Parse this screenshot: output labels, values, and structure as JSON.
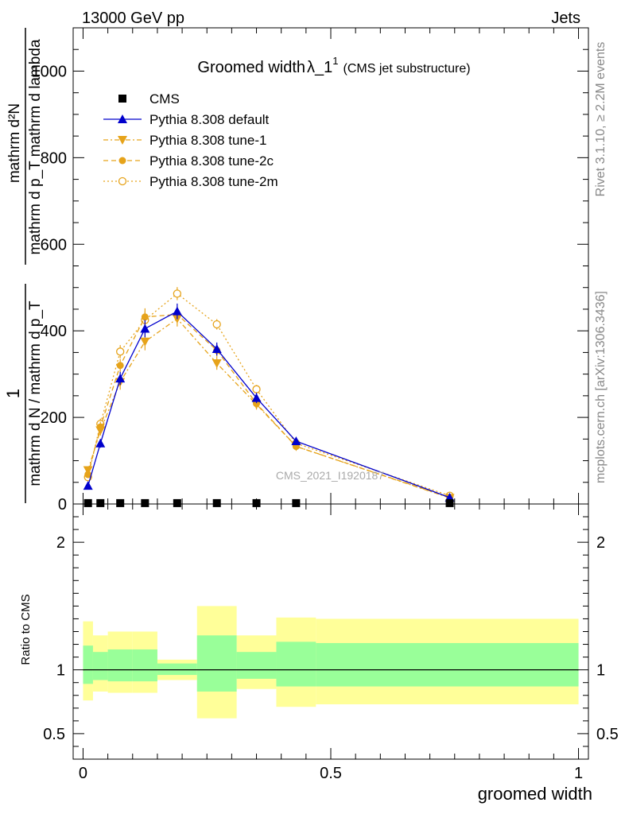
{
  "header": {
    "left": "13000 GeV pp",
    "right": "Jets"
  },
  "title": {
    "main": "Groomed width",
    "symbol": "λ_1",
    "superscript": "1",
    "sub": "(CMS jet substructure)"
  },
  "side_labels": {
    "rivet": "Rivet 3.1.10, ≥ 2.2M events",
    "mcplots": "mcplots.cern.ch [arXiv:1306.3436]"
  },
  "watermark": "CMS_2021_I1920187",
  "ylabel": {
    "numerator_1": "1",
    "denominator_1": "mathrm d N / mathrm d p_T",
    "numerator_2": "mathrm d²N",
    "denominator_2": "mathrm d p_T mathrm d lambda"
  },
  "ratio_ylabel": "Ratio to CMS",
  "colors": {
    "cms": "#000000",
    "default": "#0000cc",
    "tune": "#e6a31a",
    "band_inner": "#99ff99",
    "band_outer": "#ffff99"
  },
  "chart_data": [
    {
      "type": "line",
      "panel": "main",
      "xlabel": "groomed width",
      "xlim": [
        -0.02,
        1.02
      ],
      "ylim": [
        0,
        1100
      ],
      "x_ticks": [
        "0",
        "0.5",
        "1"
      ],
      "y_ticks": [
        "0",
        "200",
        "400",
        "600",
        "800",
        "1000"
      ],
      "bins": [
        [
          0.0,
          0.02
        ],
        [
          0.02,
          0.05
        ],
        [
          0.05,
          0.1
        ],
        [
          0.1,
          0.15
        ],
        [
          0.15,
          0.23
        ],
        [
          0.23,
          0.31
        ],
        [
          0.31,
          0.39
        ],
        [
          0.39,
          0.47
        ],
        [
          0.47,
          1.0
        ]
      ],
      "series": [
        {
          "name": "CMS",
          "x": [
            0.01,
            0.035,
            0.075,
            0.125,
            0.19,
            0.27,
            0.35,
            0.43,
            0.74
          ],
          "y": [
            2,
            2,
            2,
            2,
            2,
            2,
            2,
            2,
            2
          ],
          "yerr": [
            0,
            0,
            0,
            0,
            0,
            0,
            0,
            0,
            0
          ]
        },
        {
          "name": "Pythia 8.308 default",
          "x": [
            0.01,
            0.035,
            0.075,
            0.125,
            0.19,
            0.27,
            0.35,
            0.43,
            0.74
          ],
          "y": [
            42,
            140,
            290,
            405,
            445,
            358,
            245,
            145,
            15
          ],
          "yerr": [
            6,
            10,
            15,
            20,
            18,
            15,
            12,
            8,
            2
          ]
        },
        {
          "name": "Pythia 8.308 tune-1",
          "x": [
            0.01,
            0.035,
            0.075,
            0.125,
            0.19,
            0.27,
            0.35,
            0.43,
            0.74
          ],
          "y": [
            78,
            170,
            282,
            375,
            428,
            325,
            230,
            133,
            14
          ],
          "yerr": [
            8,
            12,
            18,
            20,
            18,
            15,
            12,
            8,
            2
          ]
        },
        {
          "name": "Pythia 8.308 tune-2c",
          "x": [
            0.01,
            0.035,
            0.075,
            0.125,
            0.19,
            0.27,
            0.35,
            0.43,
            0.74
          ],
          "y": [
            68,
            178,
            320,
            432,
            438,
            355,
            232,
            133,
            15
          ],
          "yerr": [
            8,
            12,
            15,
            20,
            18,
            15,
            12,
            8,
            2
          ]
        },
        {
          "name": "Pythia 8.308 tune-2m",
          "x": [
            0.01,
            0.035,
            0.075,
            0.125,
            0.19,
            0.27,
            0.35,
            0.43,
            0.74
          ],
          "y": [
            62,
            185,
            352,
            425,
            486,
            415,
            265,
            140,
            19
          ],
          "yerr": [
            8,
            12,
            15,
            20,
            15,
            12,
            10,
            8,
            2
          ]
        }
      ]
    },
    {
      "type": "area",
      "panel": "ratio",
      "xlabel": "groomed width",
      "ylabel": "Ratio to CMS",
      "xlim": [
        -0.02,
        1.02
      ],
      "ylim": [
        0.3,
        2.3
      ],
      "x_ticks": [
        "0",
        "0.5",
        "1"
      ],
      "y_ticks": [
        "0.5",
        "1",
        "2"
      ],
      "bins": [
        [
          0.0,
          0.02
        ],
        [
          0.02,
          0.05
        ],
        [
          0.05,
          0.1
        ],
        [
          0.1,
          0.15
        ],
        [
          0.15,
          0.23
        ],
        [
          0.23,
          0.31
        ],
        [
          0.31,
          0.39
        ],
        [
          0.39,
          0.47
        ],
        [
          0.47,
          1.0
        ]
      ],
      "inner_band": {
        "low": [
          0.89,
          0.92,
          0.91,
          0.91,
          0.96,
          0.83,
          0.93,
          0.87,
          0.87
        ],
        "high": [
          1.19,
          1.14,
          1.16,
          1.16,
          1.05,
          1.27,
          1.14,
          1.22,
          1.21
        ]
      },
      "outer_band": {
        "low": [
          0.76,
          0.83,
          0.82,
          0.82,
          0.92,
          0.62,
          0.85,
          0.71,
          0.73
        ],
        "high": [
          1.38,
          1.27,
          1.3,
          1.3,
          1.08,
          1.5,
          1.27,
          1.41,
          1.4
        ]
      },
      "reference_line": 1.0
    }
  ]
}
